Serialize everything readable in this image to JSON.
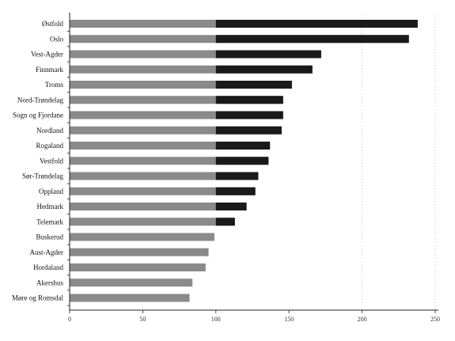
{
  "chart_data": {
    "type": "bar",
    "orientation": "horizontal",
    "categories": [
      "Østfold",
      "Oslo",
      "Vest-Agder",
      "Finnmark",
      "Troms",
      "Nord-Trøndelag",
      "Sogn og Fjordane",
      "Nordland",
      "Rogaland",
      "Vestfold",
      "Sør-Trøndelag",
      "Oppland",
      "Hedmark",
      "Telemark",
      "Buskerud",
      "Aust-Agder",
      "Hordaland",
      "Akershus",
      "Møre og Romsdal"
    ],
    "values": [
      238,
      232,
      172,
      166,
      152,
      146,
      146,
      145,
      137,
      136,
      129,
      127,
      121,
      113,
      99,
      95,
      93,
      84,
      82
    ],
    "x_ticks": [
      0,
      50,
      100,
      150,
      200,
      250
    ],
    "x_tick_labels": [
      "0",
      "50",
      "100",
      "150",
      "200",
      "250"
    ],
    "xlim": [
      0,
      250
    ],
    "grid": "vertical dotted lines at 200 and 250",
    "colors": {
      "bar_main": "#8a8a8a",
      "bar_dark": "#1a1a1a",
      "axis": "#222222",
      "grid": "#999999"
    }
  }
}
